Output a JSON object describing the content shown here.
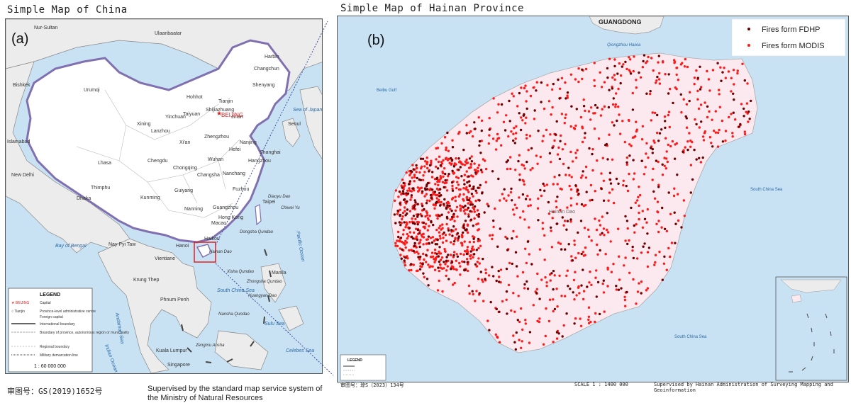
{
  "left_panel": {
    "title": "Simple Map of China",
    "panel_label": "(a)",
    "cities": [
      {
        "name": "BEIJING",
        "capital": true
      },
      {
        "name": "Ulaanbaatar"
      },
      {
        "name": "Harbin"
      },
      {
        "name": "Changchun"
      },
      {
        "name": "Shenyang"
      },
      {
        "name": "Hohhot"
      },
      {
        "name": "Tianjin"
      },
      {
        "name": "Shijiazhuang"
      },
      {
        "name": "Jinan"
      },
      {
        "name": "Taiyuan"
      },
      {
        "name": "Yinchuan"
      },
      {
        "name": "Xining"
      },
      {
        "name": "Lanzhou"
      },
      {
        "name": "Xi'an"
      },
      {
        "name": "Zhengzhou"
      },
      {
        "name": "Hefei"
      },
      {
        "name": "Nanjing"
      },
      {
        "name": "Shanghai"
      },
      {
        "name": "Wuhan"
      },
      {
        "name": "Hangzhou"
      },
      {
        "name": "Chengdu"
      },
      {
        "name": "Chongqing"
      },
      {
        "name": "Changsha"
      },
      {
        "name": "Nanchang"
      },
      {
        "name": "Fuzhou"
      },
      {
        "name": "Taipei"
      },
      {
        "name": "Guiyang"
      },
      {
        "name": "Kunming"
      },
      {
        "name": "Nanning"
      },
      {
        "name": "Guangzhou"
      },
      {
        "name": "Hong Kong"
      },
      {
        "name": "Macao"
      },
      {
        "name": "Haikou"
      },
      {
        "name": "Lhasa"
      },
      {
        "name": "Urumqi"
      },
      {
        "name": "Seoul"
      },
      {
        "name": "New Delhi"
      },
      {
        "name": "Islamabad"
      },
      {
        "name": "Nay Pyi Taw"
      },
      {
        "name": "Vientiane"
      },
      {
        "name": "Hanoi"
      },
      {
        "name": "Phnum Penh"
      },
      {
        "name": "Krung Thep"
      },
      {
        "name": "Kuala Lumpur"
      },
      {
        "name": "Singapore"
      },
      {
        "name": "Bishkek"
      },
      {
        "name": "Nur-Sultan"
      },
      {
        "name": "Dhaka"
      },
      {
        "name": "Thimphu"
      },
      {
        "name": "Manila"
      }
    ],
    "sea_labels": [
      "Bay of Bengal",
      "Andaman Sea",
      "South China Sea",
      "Pacific Ocean",
      "Sulu Sea",
      "Indian Ocean",
      "Celebes Sea",
      "Sea of Japan"
    ],
    "island_labels": [
      "Diaoyu Dao",
      "Chiwei Yu",
      "Hainan Dao",
      "Dongsha Qundao",
      "Xisha Qundao",
      "Zhongsha Qundao",
      "Nansha Qundao",
      "Huangyan Dao",
      "Zengmu Ansha"
    ],
    "legend": {
      "title": "LEGEND",
      "items": [
        {
          "symbol": "★ BEIJING",
          "label": "Capital"
        },
        {
          "symbol": "○ Tianjin",
          "label": "Province-level administrative centre"
        },
        {
          "symbol": "",
          "label": "Foreign capital"
        },
        {
          "symbol": "",
          "label": "International boundary"
        },
        {
          "symbol": "",
          "label": "Boundary of province, autonomous region or municipality"
        },
        {
          "symbol": "",
          "label": "Regional boundary"
        },
        {
          "symbol": "",
          "label": "Military demarcation line"
        }
      ],
      "scale": "1 : 60 000 000"
    },
    "approval_number": "审图号：GS(2019)1652号",
    "supervision_note": "Supervised by the standard map service system of the Ministry of Natural Resources"
  },
  "right_panel": {
    "title": "Simple Map of Hainan Province",
    "panel_label": "(b)",
    "map_labels": [
      "GUANGDONG",
      "Qiongzhou Haixia",
      "Beibu Gulf",
      "South China Sea",
      "Hainan Dao",
      "South China Sea"
    ],
    "fire_legend": [
      {
        "label": "Fires form FDHP",
        "color": "#6e0000"
      },
      {
        "label": "Fires form MODIS",
        "color": "#ff1a1a"
      }
    ],
    "fire_counts_estimate": {
      "fdhp": 480,
      "modis": 1180
    },
    "map_legend_title": "LEGEND",
    "approval_number": "审图号：琼S（2023）134号",
    "scale": "SCALE 1 : 1400 000",
    "supervision_note": "Supervised by Hainan Administration of Surveying Mapping and Geoinformation"
  },
  "colors": {
    "sea": "#c9e2f3",
    "china_land": "#ffffff",
    "foreign_land": "#ececec",
    "hainan_land": "#fbe9ef",
    "china_border": "#8070b0",
    "highlight_box": "#e02020"
  }
}
